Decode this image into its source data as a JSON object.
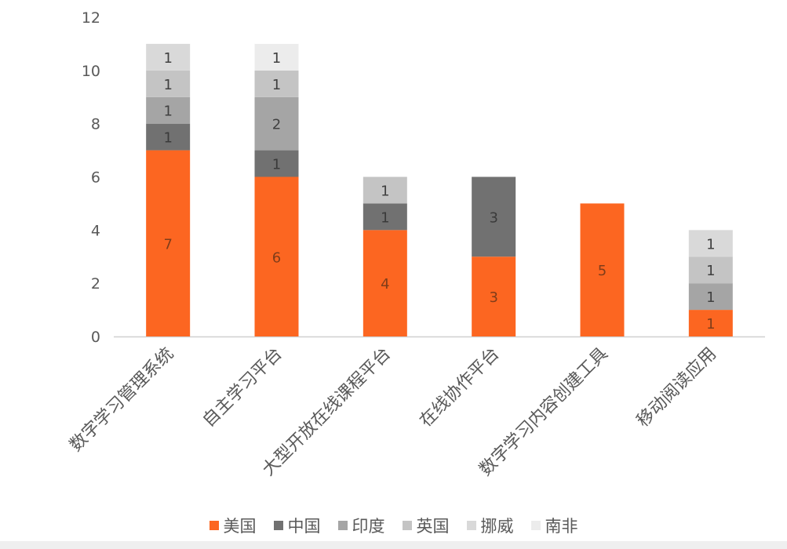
{
  "chart_data": {
    "type": "bar",
    "stacked": true,
    "categories": [
      "数字学习管理系统",
      "自主学习平台",
      "大型开放在线课程平台",
      "在线协作平台",
      "数字学习内容创建工具",
      "移动阅读应用"
    ],
    "series": [
      {
        "name": "美国",
        "color": "#fc6621",
        "label_color": "#7f3d1a",
        "values": [
          7,
          6,
          4,
          3,
          5,
          1
        ]
      },
      {
        "name": "中国",
        "color": "#717171",
        "label_color": "#3a3a3a",
        "values": [
          1,
          1,
          1,
          3,
          0,
          0
        ]
      },
      {
        "name": "印度",
        "color": "#a5a5a5",
        "label_color": "#404040",
        "values": [
          1,
          2,
          0,
          0,
          0,
          1
        ]
      },
      {
        "name": "英国",
        "color": "#c4c4c4",
        "label_color": "#404040",
        "values": [
          1,
          1,
          1,
          0,
          0,
          1
        ]
      },
      {
        "name": "挪威",
        "color": "#d9d9d9",
        "label_color": "#404040",
        "values": [
          1,
          0,
          0,
          0,
          0,
          1
        ]
      },
      {
        "name": "南非",
        "color": "#ececec",
        "label_color": "#404040",
        "values": [
          0,
          1,
          0,
          0,
          0,
          0
        ]
      }
    ],
    "yticks": [
      0,
      2,
      4,
      6,
      8,
      10,
      12
    ],
    "ylim": [
      0,
      12
    ],
    "title": "",
    "xlabel": "",
    "ylabel": "",
    "grid": false,
    "legend_position": "bottom",
    "data_labels": true
  }
}
